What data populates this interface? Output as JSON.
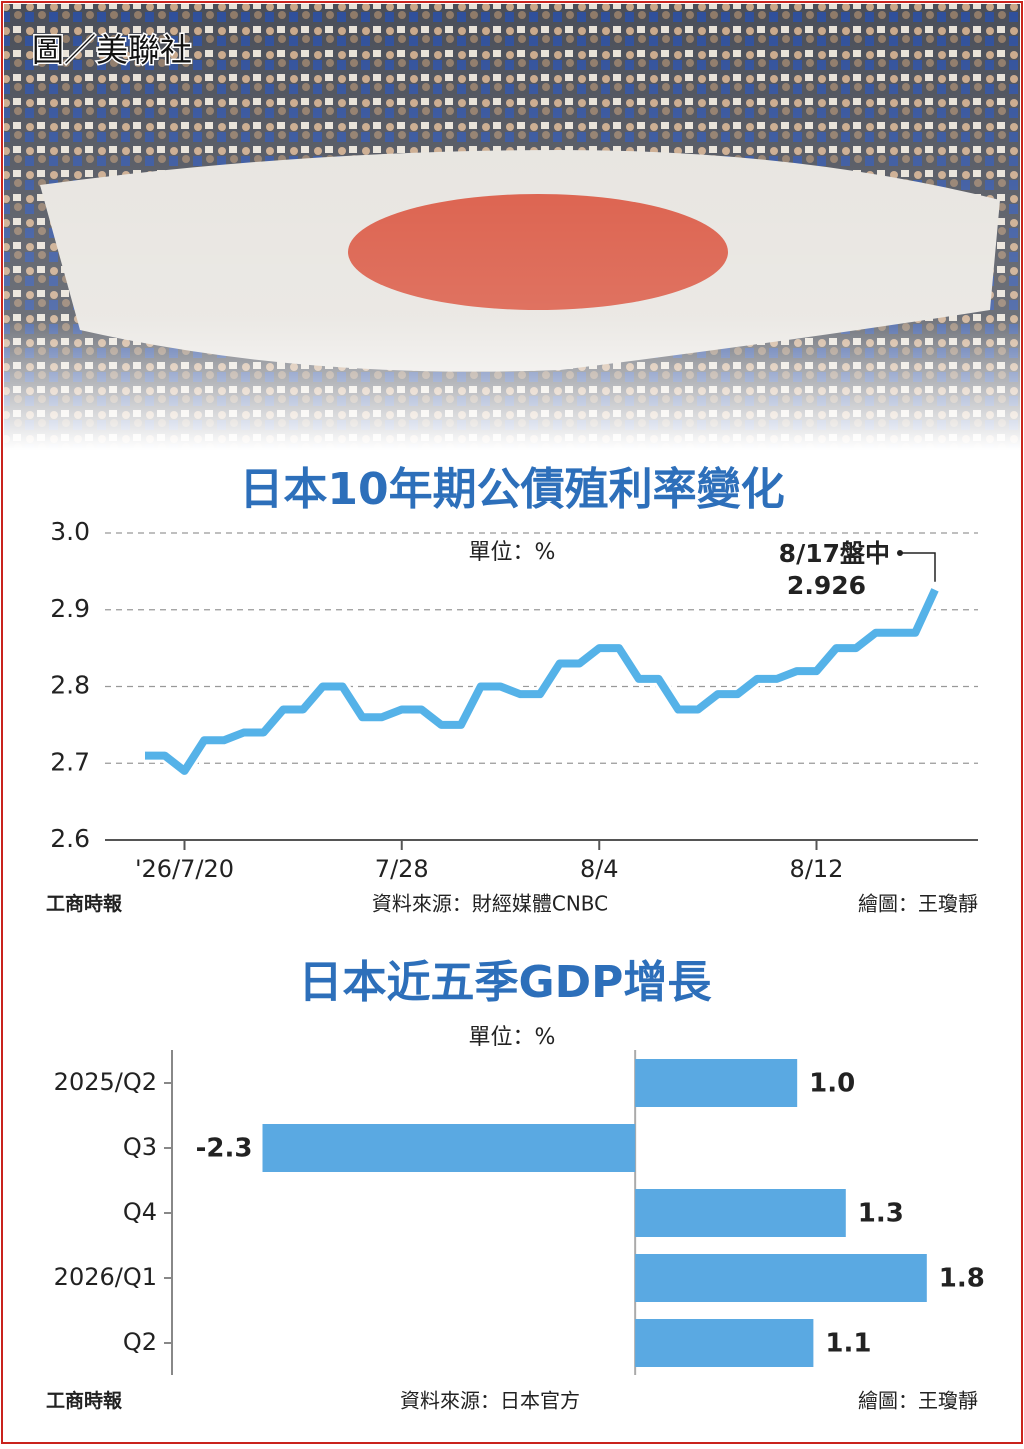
{
  "photo_credit": "圖／美聯社",
  "chart_data": [
    {
      "type": "line",
      "title": "日本10年期公債殖利率變化",
      "unit": "單位：%",
      "categories": [
        null,
        null,
        "'26/7/20",
        null,
        null,
        null,
        null,
        null,
        null,
        null,
        null,
        null,
        null,
        "7/28",
        null,
        null,
        null,
        null,
        null,
        null,
        null,
        null,
        null,
        "8/4",
        null,
        null,
        null,
        null,
        null,
        null,
        null,
        null,
        null,
        null,
        "8/12",
        null,
        null,
        null,
        null,
        null,
        null
      ],
      "values": [
        2.71,
        2.71,
        2.69,
        2.73,
        2.73,
        2.74,
        2.74,
        2.77,
        2.77,
        2.8,
        2.8,
        2.76,
        2.76,
        2.77,
        2.77,
        2.75,
        2.75,
        2.8,
        2.8,
        2.79,
        2.79,
        2.83,
        2.83,
        2.85,
        2.85,
        2.81,
        2.81,
        2.77,
        2.77,
        2.79,
        2.79,
        2.81,
        2.81,
        2.82,
        2.82,
        2.85,
        2.85,
        2.87,
        2.87,
        2.87,
        2.926
      ],
      "color": "#55b2e8",
      "ylim": [
        2.6,
        3.0
      ],
      "yticks": [
        2.6,
        2.7,
        2.8,
        2.9,
        {
          "value": 3.0,
          "label": "3.0"
        }
      ],
      "grid": true,
      "annotation": "8/17盤中",
      "brand": "工商時報",
      "source": "資料來源：財經媒體CNBC",
      "credit": "繪圖：王瓊靜"
    },
    {
      "type": "hbar",
      "title": "日本近五季GDP增長",
      "unit": "單位：%",
      "categories": [
        "2025/Q2",
        "Q3",
        "Q4",
        "2026/Q1",
        "Q2"
      ],
      "values": [
        1.0,
        -2.3,
        1.3,
        1.8,
        1.1
      ],
      "value_labels": [
        "1.0",
        "-2.3",
        "1.3",
        "1.8",
        "1.1"
      ],
      "color": "#5aa9e2",
      "xlim": [
        -2.84,
        2.19
      ],
      "brand": "工商時報",
      "source": "資料來源：日本官方",
      "credit": "繪圖：王瓊靜"
    }
  ]
}
